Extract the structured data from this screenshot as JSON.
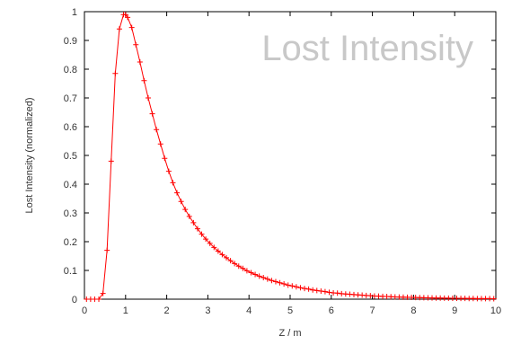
{
  "chart_data": {
    "type": "line",
    "title": "Lost Intensity",
    "xlabel": "Z / m",
    "ylabel": "Lost Intensity (normalized)",
    "xlim": [
      0,
      10
    ],
    "ylim": [
      0,
      1
    ],
    "xticks": [
      "0",
      "1",
      "2",
      "3",
      "4",
      "5",
      "6",
      "7",
      "8",
      "9",
      "10"
    ],
    "yticks": [
      "0",
      "0.1",
      "0.2",
      "0.3",
      "0.4",
      "0.5",
      "0.6",
      "0.7",
      "0.8",
      "0.9",
      "1"
    ],
    "grid": false,
    "legend": "none",
    "line_color": "#ff0000",
    "title_color": "#c8c8c8",
    "marker": "plus",
    "series": [
      {
        "x": [
          0.05,
          0.15,
          0.25,
          0.35,
          0.45,
          0.55,
          0.65,
          0.75,
          0.85,
          0.95,
          1.0,
          1.05,
          1.15,
          1.25,
          1.35,
          1.45,
          1.55,
          1.65,
          1.75,
          1.85,
          1.95,
          2.05,
          2.15,
          2.25,
          2.35,
          2.45,
          2.55,
          2.65,
          2.75,
          2.85,
          2.95,
          3.05,
          3.15,
          3.25,
          3.35,
          3.45,
          3.55,
          3.65,
          3.75,
          3.85,
          3.95,
          4.05,
          4.15,
          4.25,
          4.35,
          4.45,
          4.55,
          4.65,
          4.75,
          4.85,
          4.95,
          5.05,
          5.15,
          5.25,
          5.35,
          5.45,
          5.55,
          5.65,
          5.75,
          5.85,
          5.95,
          6.05,
          6.15,
          6.25,
          6.35,
          6.45,
          6.55,
          6.65,
          6.75,
          6.85,
          6.95,
          7.05,
          7.15,
          7.25,
          7.35,
          7.45,
          7.55,
          7.65,
          7.75,
          7.85,
          7.95,
          8.05,
          8.15,
          8.25,
          8.35,
          8.45,
          8.55,
          8.65,
          8.75,
          8.85,
          8.95,
          9.05,
          9.15,
          9.25,
          9.35,
          9.45,
          9.55,
          9.65,
          9.75,
          9.85,
          9.95
        ],
        "y": [
          0,
          0,
          0,
          0,
          0.02,
          0.17,
          0.48,
          0.785,
          0.94,
          0.99,
          0.99,
          0.98,
          0.945,
          0.885,
          0.825,
          0.76,
          0.7,
          0.645,
          0.59,
          0.54,
          0.49,
          0.445,
          0.405,
          0.37,
          0.34,
          0.312,
          0.288,
          0.266,
          0.245,
          0.226,
          0.209,
          0.194,
          0.18,
          0.167,
          0.155,
          0.144,
          0.134,
          0.124,
          0.115,
          0.107,
          0.099,
          0.092,
          0.086,
          0.08,
          0.075,
          0.07,
          0.065,
          0.061,
          0.057,
          0.053,
          0.049,
          0.046,
          0.043,
          0.04,
          0.037,
          0.035,
          0.032,
          0.03,
          0.028,
          0.026,
          0.024,
          0.022,
          0.021,
          0.019,
          0.018,
          0.017,
          0.016,
          0.015,
          0.014,
          0.013,
          0.012,
          0.011,
          0.0105,
          0.0098,
          0.0092,
          0.0086,
          0.008,
          0.0075,
          0.007,
          0.0066,
          0.0062,
          0.0058,
          0.0054,
          0.005,
          0.0047,
          0.0044,
          0.0041,
          0.0039,
          0.0036,
          0.0034,
          0.0032,
          0.003,
          0.0028,
          0.0026,
          0.0024,
          0.0023,
          0.0021,
          0.002,
          0.0019,
          0.0018,
          0.0017
        ]
      }
    ]
  }
}
